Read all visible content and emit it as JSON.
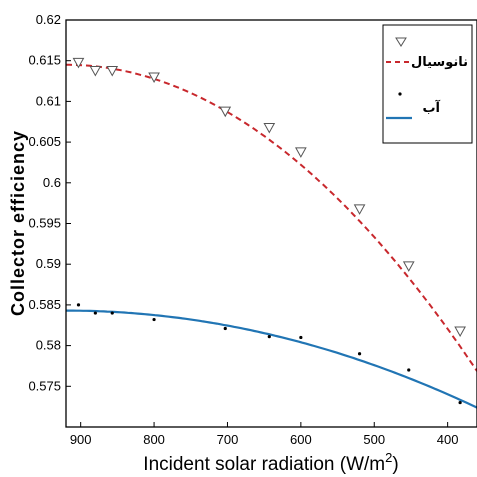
{
  "chart_data": {
    "type": "scatter",
    "xlabel": "Incident solar radiation (W/m",
    "xlabel_sup": "2",
    "xlabel_close": ")",
    "ylabel": "Collector efficiency",
    "xlim": [
      920,
      360
    ],
    "ylim": [
      0.57,
      0.62
    ],
    "x_reversed": true,
    "x_ticks": [
      900,
      800,
      700,
      600,
      500,
      400
    ],
    "y_ticks": [
      0.575,
      0.58,
      0.585,
      0.59,
      0.595,
      0.6,
      0.605,
      0.61,
      0.615,
      0.62
    ],
    "grid": false,
    "legend_position": "top-right",
    "series": [
      {
        "name": "نانوسیال",
        "marker": "triangle-down-open",
        "fit_style": "dashed",
        "color": "#c8282d",
        "points": [
          {
            "x": 903,
            "y": 0.6148
          },
          {
            "x": 880,
            "y": 0.6138
          },
          {
            "x": 857,
            "y": 0.6138
          },
          {
            "x": 800,
            "y": 0.613
          },
          {
            "x": 703,
            "y": 0.6088
          },
          {
            "x": 643,
            "y": 0.6068
          },
          {
            "x": 600,
            "y": 0.6038
          },
          {
            "x": 520,
            "y": 0.5968
          },
          {
            "x": 453,
            "y": 0.5898
          },
          {
            "x": 383,
            "y": 0.5818
          }
        ],
        "fit": {
          "x_peak": 920,
          "y_peak": 0.6145,
          "curvature": 1.2e-07
        }
      },
      {
        "name": "آب",
        "marker": "dot",
        "fit_style": "solid",
        "color": "#2175b4",
        "points": [
          {
            "x": 903,
            "y": 0.585
          },
          {
            "x": 880,
            "y": 0.584
          },
          {
            "x": 857,
            "y": 0.584
          },
          {
            "x": 800,
            "y": 0.5832
          },
          {
            "x": 703,
            "y": 0.5821
          },
          {
            "x": 643,
            "y": 0.5811
          },
          {
            "x": 600,
            "y": 0.581
          },
          {
            "x": 520,
            "y": 0.579
          },
          {
            "x": 453,
            "y": 0.577
          },
          {
            "x": 383,
            "y": 0.573
          }
        ],
        "fit": {
          "x_peak": 920,
          "y_peak": 0.5843,
          "curvature": 3.8e-08
        }
      }
    ]
  }
}
